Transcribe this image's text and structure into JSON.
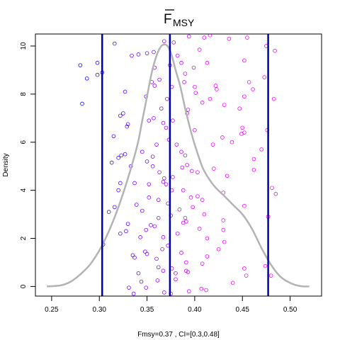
{
  "chart_data": {
    "type": "scatter",
    "title": "F",
    "title_subscript": "MSY",
    "title_overline": true,
    "xlabel": "Fmsy=0.37 , CI=[0.3,0.48]",
    "ylabel": "Density",
    "xlim": [
      0.233,
      0.533
    ],
    "ylim": [
      -0.4,
      10.5
    ],
    "x_ticks": [
      0.25,
      0.3,
      0.35,
      0.4,
      0.45,
      0.5
    ],
    "x_tick_labels": [
      "0.25",
      "0.30",
      "0.35",
      "0.40",
      "0.45",
      "0.50"
    ],
    "y_ticks": [
      0,
      2,
      4,
      6,
      8,
      10
    ],
    "y_tick_labels": [
      "0",
      "2",
      "4",
      "6",
      "8",
      "10"
    ],
    "grid": false,
    "vlines": [
      0.303,
      0.374,
      0.477
    ],
    "vline_color": "#0000aa",
    "density_color": "#b3b3b3",
    "gradient_start_color": "#0000ff",
    "gradient_end_color": "#ff00ff",
    "density": {
      "x": [
        0.245,
        0.26,
        0.27,
        0.28,
        0.29,
        0.3,
        0.31,
        0.32,
        0.33,
        0.34,
        0.345,
        0.35,
        0.355,
        0.36,
        0.365,
        0.37,
        0.373,
        0.376,
        0.38,
        0.385,
        0.39,
        0.395,
        0.4,
        0.405,
        0.41,
        0.42,
        0.43,
        0.44,
        0.45,
        0.46,
        0.47,
        0.48,
        0.49,
        0.5,
        0.51,
        0.52
      ],
      "y": [
        0.0,
        0.05,
        0.2,
        0.5,
        0.9,
        1.5,
        2.3,
        3.3,
        4.5,
        5.9,
        6.9,
        7.9,
        8.9,
        9.6,
        10.0,
        10.05,
        9.9,
        9.6,
        9.0,
        8.3,
        7.4,
        6.6,
        5.9,
        5.3,
        4.8,
        4.2,
        3.8,
        3.4,
        3.0,
        2.4,
        1.6,
        0.9,
        0.4,
        0.15,
        0.02,
        0.0
      ]
    },
    "points": [
      [
        0.28,
        9.2
      ],
      [
        0.287,
        8.65
      ],
      [
        0.282,
        7.6
      ],
      [
        0.298,
        9.3
      ],
      [
        0.303,
        8.9
      ],
      [
        0.298,
        8.8
      ],
      [
        0.316,
        10.1
      ],
      [
        0.334,
        9.6
      ],
      [
        0.341,
        9.65
      ],
      [
        0.35,
        9.7
      ],
      [
        0.357,
        9.75
      ],
      [
        0.368,
        10.2
      ],
      [
        0.378,
        10.15
      ],
      [
        0.394,
        10.4
      ],
      [
        0.41,
        10.35
      ],
      [
        0.416,
        10.45
      ],
      [
        0.436,
        10.3
      ],
      [
        0.455,
        10.35
      ],
      [
        0.475,
        10.0
      ],
      [
        0.484,
        9.8
      ],
      [
        0.327,
        8.1
      ],
      [
        0.349,
        7.9
      ],
      [
        0.355,
        8.5
      ],
      [
        0.358,
        8.35
      ],
      [
        0.363,
        8.6
      ],
      [
        0.371,
        7.8
      ],
      [
        0.376,
        8.3
      ],
      [
        0.389,
        8.5
      ],
      [
        0.4,
        8.3
      ],
      [
        0.401,
        8.05
      ],
      [
        0.408,
        7.65
      ],
      [
        0.416,
        7.8
      ],
      [
        0.422,
        8.35
      ],
      [
        0.423,
        8.2
      ],
      [
        0.431,
        7.55
      ],
      [
        0.447,
        7.4
      ],
      [
        0.452,
        7.9
      ],
      [
        0.457,
        8.5
      ],
      [
        0.461,
        8.2
      ],
      [
        0.483,
        7.8
      ],
      [
        0.473,
        8.7
      ],
      [
        0.452,
        9.4
      ],
      [
        0.413,
        9.3
      ],
      [
        0.399,
        9.1
      ],
      [
        0.386,
        9.3
      ],
      [
        0.358,
        9.1
      ],
      [
        0.374,
        9.2
      ],
      [
        0.382,
        9.6
      ],
      [
        0.39,
        8.85
      ],
      [
        0.405,
        9.85
      ],
      [
        0.322,
        7.1
      ],
      [
        0.325,
        7.2
      ],
      [
        0.329,
        6.65
      ],
      [
        0.33,
        6.75
      ],
      [
        0.352,
        6.9
      ],
      [
        0.357,
        7.0
      ],
      [
        0.365,
        7.4
      ],
      [
        0.367,
        6.8
      ],
      [
        0.37,
        6.6
      ],
      [
        0.377,
        6.9
      ],
      [
        0.392,
        7.2
      ],
      [
        0.393,
        7.35
      ],
      [
        0.4,
        6.5
      ],
      [
        0.419,
        5.9
      ],
      [
        0.429,
        6.2
      ],
      [
        0.439,
        6.0
      ],
      [
        0.449,
        6.35
      ],
      [
        0.45,
        6.6
      ],
      [
        0.452,
        6.4
      ],
      [
        0.47,
        5.7
      ],
      [
        0.476,
        6.5
      ],
      [
        0.345,
        5.6
      ],
      [
        0.356,
        5.4
      ],
      [
        0.36,
        5.9
      ],
      [
        0.373,
        6.1
      ],
      [
        0.381,
        5.9
      ],
      [
        0.386,
        5.6
      ],
      [
        0.39,
        5.45
      ],
      [
        0.315,
        6.25
      ],
      [
        0.323,
        5.45
      ],
      [
        0.32,
        5.35
      ],
      [
        0.327,
        5.5
      ],
      [
        0.313,
        5.15
      ],
      [
        0.333,
        5.0
      ],
      [
        0.35,
        5.2
      ],
      [
        0.356,
        5.0
      ],
      [
        0.363,
        4.75
      ],
      [
        0.368,
        4.5
      ],
      [
        0.377,
        4.55
      ],
      [
        0.387,
        4.95
      ],
      [
        0.392,
        5.05
      ],
      [
        0.397,
        4.8
      ],
      [
        0.403,
        4.75
      ],
      [
        0.42,
        4.9
      ],
      [
        0.434,
        4.6
      ],
      [
        0.462,
        5.3
      ],
      [
        0.462,
        4.85
      ],
      [
        0.481,
        4.1
      ],
      [
        0.32,
        4.0
      ],
      [
        0.322,
        4.3
      ],
      [
        0.337,
        4.3
      ],
      [
        0.352,
        4.25
      ],
      [
        0.367,
        4.35
      ],
      [
        0.37,
        4.25
      ],
      [
        0.376,
        4.0
      ],
      [
        0.388,
        4.0
      ],
      [
        0.396,
        3.7
      ],
      [
        0.403,
        3.75
      ],
      [
        0.408,
        3.6
      ],
      [
        0.43,
        3.9
      ],
      [
        0.452,
        3.35
      ],
      [
        0.485,
        3.85
      ],
      [
        0.316,
        3.3
      ],
      [
        0.31,
        3.1
      ],
      [
        0.339,
        3.4
      ],
      [
        0.345,
        3.15
      ],
      [
        0.352,
        3.7
      ],
      [
        0.362,
        3.6
      ],
      [
        0.372,
        3.45
      ],
      [
        0.384,
        3.2
      ],
      [
        0.39,
        2.85
      ],
      [
        0.398,
        3.3
      ],
      [
        0.41,
        3.0
      ],
      [
        0.43,
        2.75
      ],
      [
        0.322,
        2.2
      ],
      [
        0.328,
        2.3
      ],
      [
        0.33,
        2.6
      ],
      [
        0.343,
        2.05
      ],
      [
        0.349,
        2.35
      ],
      [
        0.354,
        2.55
      ],
      [
        0.358,
        2.5
      ],
      [
        0.362,
        2.85
      ],
      [
        0.367,
        2.05
      ],
      [
        0.375,
        2.95
      ],
      [
        0.382,
        2.2
      ],
      [
        0.388,
        2.65
      ],
      [
        0.391,
        2.7
      ],
      [
        0.405,
        2.4
      ],
      [
        0.413,
        2.0
      ],
      [
        0.43,
        2.35
      ],
      [
        0.431,
        1.85
      ],
      [
        0.425,
        1.55
      ],
      [
        0.477,
        2.9
      ],
      [
        0.304,
        1.75
      ],
      [
        0.335,
        1.3
      ],
      [
        0.337,
        1.2
      ],
      [
        0.348,
        1.45
      ],
      [
        0.35,
        1.35
      ],
      [
        0.36,
        1.15
      ],
      [
        0.366,
        1.55
      ],
      [
        0.372,
        1.7
      ],
      [
        0.386,
        1.4
      ],
      [
        0.413,
        1.25
      ],
      [
        0.391,
        1.0
      ],
      [
        0.362,
        0.8
      ],
      [
        0.367,
        0.65
      ],
      [
        0.376,
        0.75
      ],
      [
        0.38,
        0.55
      ],
      [
        0.391,
        0.65
      ],
      [
        0.393,
        0.6
      ],
      [
        0.408,
        0.95
      ],
      [
        0.452,
        0.75
      ],
      [
        0.454,
        0.45
      ],
      [
        0.474,
        0.85
      ],
      [
        0.48,
        0.45
      ],
      [
        0.341,
        0.55
      ],
      [
        0.344,
        0.2
      ],
      [
        0.331,
        -0.05
      ],
      [
        0.336,
        -0.3
      ],
      [
        0.349,
        -0.05
      ],
      [
        0.361,
        0.25
      ],
      [
        0.368,
        -0.25
      ],
      [
        0.38,
        0.3
      ],
      [
        0.394,
        -0.2
      ],
      [
        0.407,
        -0.1
      ],
      [
        0.412,
        -0.15
      ],
      [
        0.44,
        0.15
      ],
      [
        0.375,
        -0.3
      ]
    ]
  }
}
